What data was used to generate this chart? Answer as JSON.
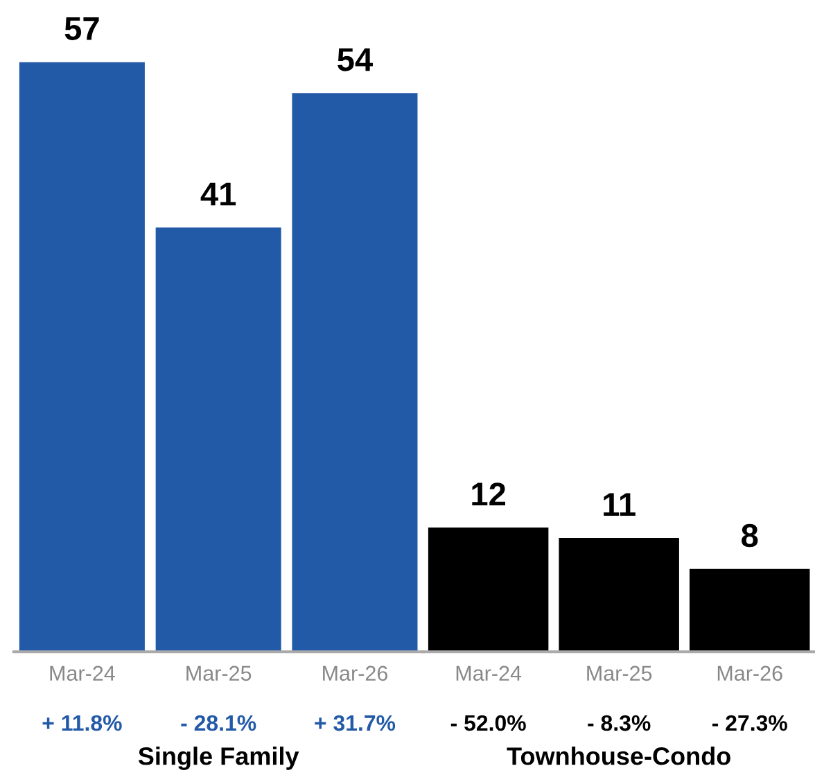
{
  "chart_data": [
    {
      "type": "bar",
      "xlabel": "Single Family",
      "categories": [
        "Mar-24",
        "Mar-25",
        "Mar-26"
      ],
      "values": [
        57,
        41,
        54
      ],
      "color": "#235aa8",
      "data_labels": true,
      "annotations": [
        "+ 11.8%",
        "- 28.1%",
        "+ 31.7%"
      ]
    },
    {
      "type": "bar",
      "xlabel": "Townhouse-Condo",
      "categories": [
        "Mar-24",
        "Mar-25",
        "Mar-26"
      ],
      "values": [
        12,
        11,
        8
      ],
      "color": "#000000",
      "data_labels": true,
      "annotations": [
        "- 52.0%",
        "- 8.3%",
        "- 27.3%"
      ]
    }
  ]
}
